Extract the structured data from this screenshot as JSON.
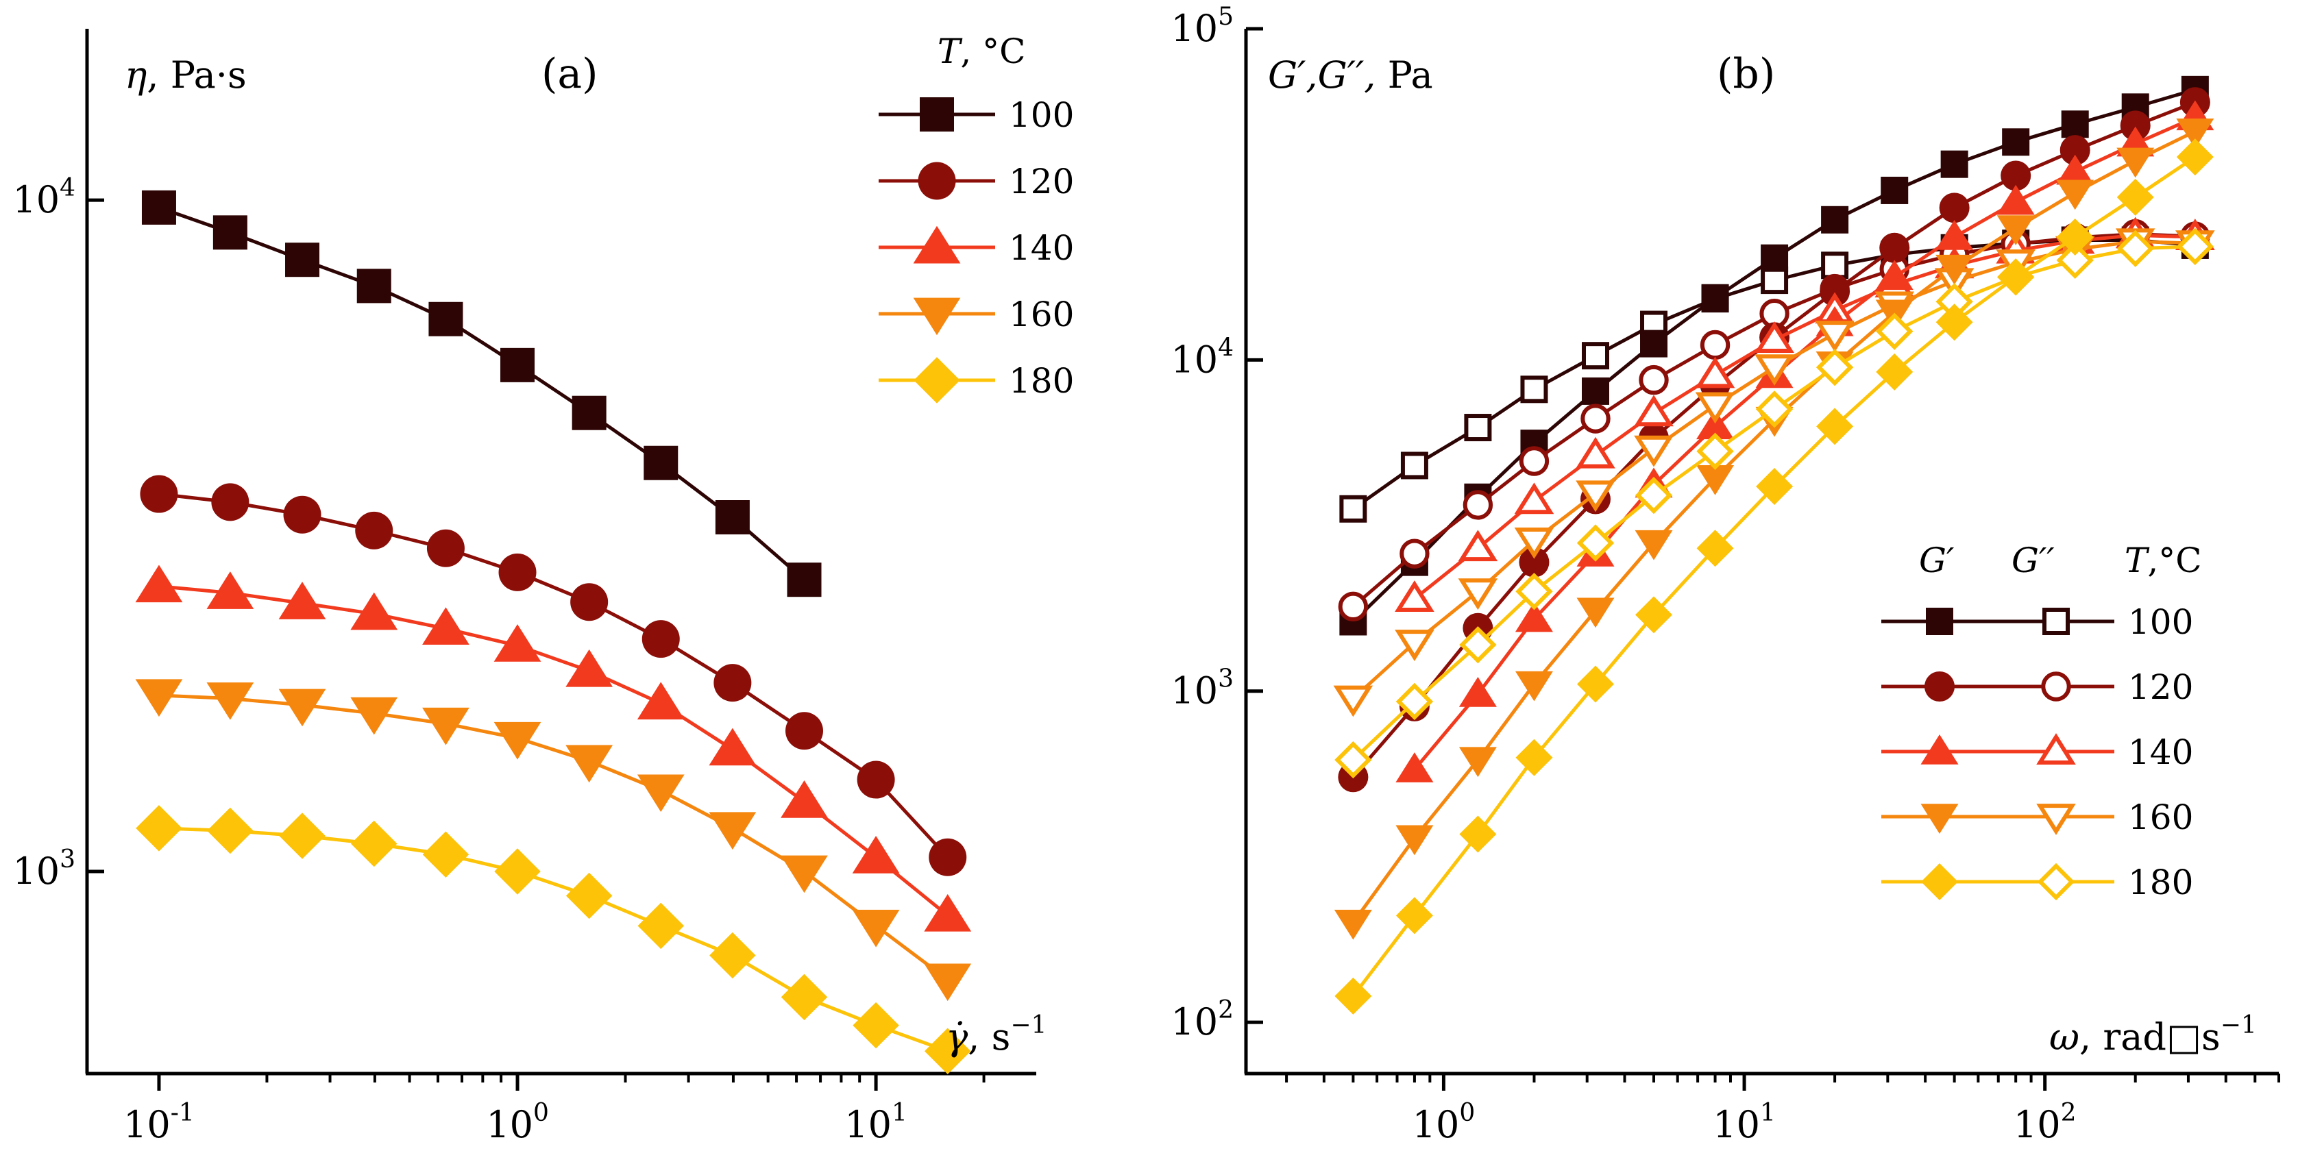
{
  "chart_data": [
    {
      "id": "a",
      "type": "line",
      "panel_label": "(a)",
      "xscale": "log",
      "yscale": "log",
      "xlim": [
        0.063,
        28
      ],
      "ylim": [
        500,
        18000
      ],
      "ylabel_symbol": "η",
      "ylabel_unit": "Pa·s",
      "xlabel_symbol": "γ̇",
      "xlabel_unit": "s",
      "xlabel_exp": "−1",
      "legend_title_symbol": "T",
      "legend_title_unit": "°C",
      "x_ticks": [
        {
          "value": 0.1,
          "base": "10",
          "exp": "-1"
        },
        {
          "value": 1,
          "base": "10",
          "exp": "0"
        },
        {
          "value": 10,
          "base": "10",
          "exp": "1"
        }
      ],
      "y_ticks": [
        {
          "value": 1000,
          "base": "10",
          "exp": "3"
        },
        {
          "value": 10000,
          "base": "10",
          "exp": "4"
        }
      ],
      "series": [
        {
          "name": "100",
          "marker": "square",
          "color": "#2d0505",
          "filled": true,
          "x": [
            0.1,
            0.158,
            0.251,
            0.398,
            0.631,
            1,
            1.585,
            2.512,
            3.981,
            6.31
          ],
          "y": [
            9750,
            8950,
            8150,
            7450,
            6650,
            5680,
            4820,
            4060,
            3370,
            2720
          ]
        },
        {
          "name": "120",
          "marker": "circle",
          "color": "#8b0e08",
          "filled": true,
          "x": [
            0.1,
            0.158,
            0.251,
            0.398,
            0.631,
            1,
            1.585,
            2.512,
            3.981,
            6.31,
            10,
            15.85
          ],
          "y": [
            3650,
            3550,
            3400,
            3220,
            3030,
            2790,
            2520,
            2220,
            1910,
            1620,
            1370,
            1050
          ]
        },
        {
          "name": "140",
          "marker": "triangle-up",
          "color": "#f23a1e",
          "filled": true,
          "x": [
            0.1,
            0.158,
            0.251,
            0.398,
            0.631,
            1,
            1.585,
            2.512,
            3.981,
            6.31,
            10,
            15.85
          ],
          "y": [
            2660,
            2600,
            2510,
            2420,
            2300,
            2170,
            1990,
            1780,
            1520,
            1270,
            1050,
            860
          ]
        },
        {
          "name": "160",
          "marker": "triangle-down",
          "color": "#f5860e",
          "filled": true,
          "x": [
            0.1,
            0.158,
            0.251,
            0.398,
            0.631,
            1,
            1.585,
            2.512,
            3.981,
            6.31,
            10,
            15.85
          ],
          "y": [
            1830,
            1810,
            1770,
            1720,
            1660,
            1580,
            1460,
            1320,
            1160,
            1000,
            830,
            690
          ]
        },
        {
          "name": "180",
          "marker": "diamond",
          "color": "#fcc309",
          "filled": true,
          "x": [
            0.1,
            0.158,
            0.251,
            0.398,
            0.631,
            1,
            1.585,
            2.512,
            3.981,
            6.31,
            10,
            15.85
          ],
          "y": [
            1160,
            1150,
            1130,
            1100,
            1060,
            1000,
            920,
            830,
            750,
            650,
            590,
            540
          ]
        }
      ]
    },
    {
      "id": "b",
      "type": "line",
      "panel_label": "(b)",
      "xscale": "log",
      "yscale": "log",
      "xlim": [
        0.22,
        600
      ],
      "ylim": [
        70,
        100000
      ],
      "ylabel_symbol": "G′,G′′,",
      "ylabel_unit": "Pa",
      "xlabel_symbol": "ω",
      "xlabel_unit": "rad",
      "xlabel_missing_glyph": "□",
      "xlabel_unit2": "s",
      "xlabel_exp": "−1",
      "legend_headers": {
        "g1": "G′",
        "g2": "G′′",
        "t": "T,°C"
      },
      "x_ticks": [
        {
          "value": 1,
          "base": "10",
          "exp": "0"
        },
        {
          "value": 10,
          "base": "10",
          "exp": "1"
        },
        {
          "value": 100,
          "base": "10",
          "exp": "2"
        }
      ],
      "y_ticks": [
        {
          "value": 100,
          "base": "10",
          "exp": "2"
        },
        {
          "value": 1000,
          "base": "10",
          "exp": "3"
        },
        {
          "value": 10000,
          "base": "10",
          "exp": "4"
        },
        {
          "value": 100000,
          "base": "10",
          "exp": "5"
        }
      ],
      "x": [
        0.5,
        0.8,
        1.3,
        2,
        3.2,
        5,
        8,
        12.6,
        20,
        31.6,
        50,
        80,
        126,
        200,
        316
      ],
      "series": [
        {
          "name": "100",
          "marker": "square",
          "color": "#2d0505",
          "G_storage": [
            1620,
            2450,
            3850,
            5600,
            8050,
            11200,
            15400,
            20300,
            26500,
            32500,
            39000,
            45500,
            51500,
            58000,
            65500
          ],
          "G_loss": [
            3550,
            4800,
            6250,
            8150,
            10300,
            12800,
            15300,
            17400,
            19300,
            20800,
            21800,
            22500,
            23000,
            23000,
            22200
          ]
        },
        {
          "name": "120",
          "marker": "circle",
          "color": "#8b0e08",
          "G_storage": [
            550,
            900,
            1550,
            2450,
            3800,
            5800,
            8400,
            11700,
            16100,
            21800,
            28800,
            36000,
            43000,
            51000,
            60000
          ],
          "G_loss": [
            1800,
            2600,
            3650,
            4950,
            6650,
            8700,
            11100,
            13800,
            16400,
            18800,
            20800,
            22400,
            23400,
            24000,
            23600
          ]
        },
        {
          "name": "140",
          "marker": "triangle-up",
          "color": "#f23a1e",
          "G_storage": null,
          "G_loss": null,
          "G_storage_vals": [
            null,
            580,
            980,
            1650,
            2600,
            4200,
            6300,
            9000,
            12900,
            17800,
            23500,
            30000,
            37000,
            45000,
            54000
          ],
          "G_loss_vals": [
            null,
            1900,
            2700,
            3750,
            5150,
            6900,
            9000,
            11500,
            14100,
            16900,
            19300,
            21400,
            22900,
            23800,
            23500
          ]
        },
        {
          "name": "160",
          "marker": "triangle-down",
          "color": "#f5860e",
          "G_storage_vals": [
            200,
            360,
            620,
            1050,
            1750,
            2800,
            4400,
            6600,
            9700,
            13900,
            19000,
            25000,
            32000,
            40000,
            49000
          ],
          "G_loss_vals": [
            950,
            1400,
            2000,
            2850,
            3950,
            5400,
            7300,
            9500,
            12000,
            14700,
            17300,
            19700,
            21600,
            22800,
            22500
          ]
        },
        {
          "name": "180",
          "marker": "diamond",
          "color": "#fcc309",
          "G_storage_vals": [
            120,
            210,
            370,
            630,
            1050,
            1700,
            2700,
            4150,
            6300,
            9200,
            13000,
            17800,
            23500,
            31000,
            41000
          ],
          "G_loss_vals": [
            620,
            930,
            1380,
            2000,
            2800,
            3900,
            5300,
            7100,
            9500,
            12200,
            15000,
            17800,
            20000,
            21700,
            22000
          ]
        }
      ]
    }
  ]
}
